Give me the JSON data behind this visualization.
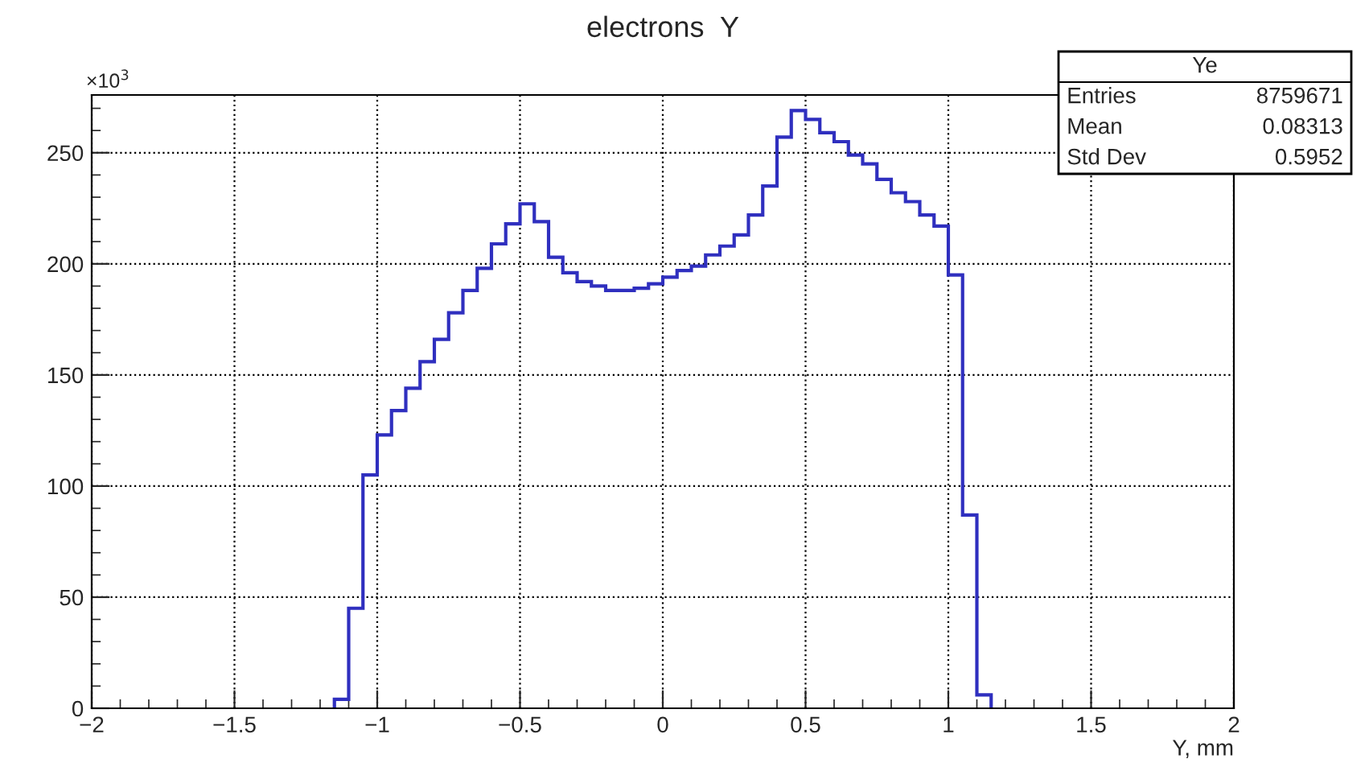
{
  "chart_data": {
    "type": "histogram",
    "title": "electrons  Y",
    "xlabel": "Y, mm",
    "bins": [
      -1.15,
      -1.1,
      -1.05,
      -1.0,
      -0.95,
      -0.9,
      -0.85,
      -0.8,
      -0.75,
      -0.7,
      -0.65,
      -0.6,
      -0.55,
      -0.5,
      -0.45,
      -0.4,
      -0.35,
      -0.3,
      -0.25,
      -0.2,
      -0.15,
      -0.1,
      -0.05,
      0.0,
      0.05,
      0.1,
      0.15,
      0.2,
      0.25,
      0.3,
      0.35,
      0.4,
      0.45,
      0.5,
      0.55,
      0.6,
      0.65,
      0.7,
      0.75,
      0.8,
      0.85,
      0.9,
      0.95,
      1.0,
      1.05,
      1.1,
      1.15
    ],
    "values": [
      4,
      45,
      105,
      123,
      134,
      144,
      156,
      166,
      178,
      188,
      198,
      209,
      218,
      227,
      219,
      203,
      196,
      192,
      190,
      188,
      188,
      189,
      191,
      194,
      197,
      199,
      204,
      208,
      213,
      222,
      235,
      257,
      269,
      265,
      259,
      255,
      249,
      245,
      238,
      232,
      228,
      222,
      217,
      195,
      87,
      6
    ],
    "color": "#2f2fbf",
    "xlim": [
      -2,
      2
    ],
    "xticks": [
      -2,
      -1.5,
      -1,
      -0.5,
      0,
      0.5,
      1,
      1.5,
      2
    ],
    "ylim": [
      0,
      276
    ],
    "yticks": [
      0,
      50,
      100,
      150,
      200,
      250
    ],
    "grid": true,
    "annotations": [
      "×10$^{3}$",
      "Ye",
      "Entries",
      "8759671",
      "Mean",
      "0.08313",
      "Std Dev",
      "0.5952"
    ]
  }
}
